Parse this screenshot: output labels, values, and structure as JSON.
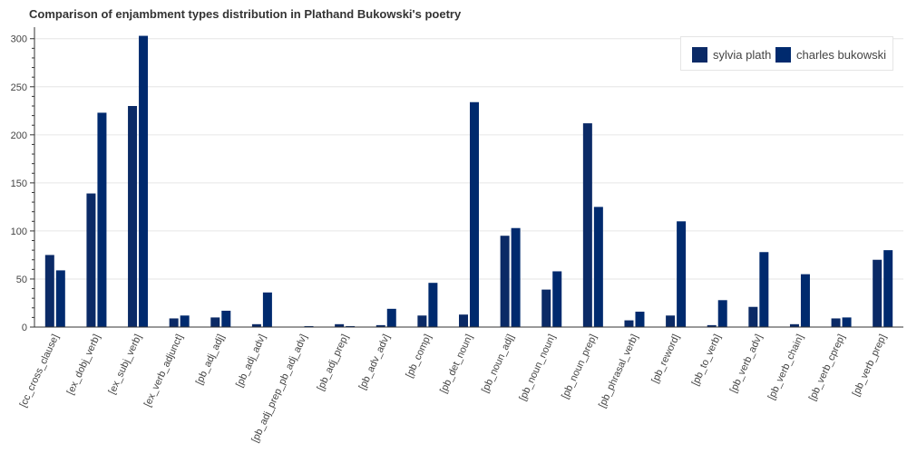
{
  "title": "Comparison of enjambment types distribution in Plathand Bukowski's poetry",
  "colors": {
    "series_0": "#0b2a66",
    "series_1": "#002a6e"
  },
  "chart_data": {
    "type": "bar",
    "title": "Comparison of enjambment types distribution in Plathand Bukowski's poetry",
    "xlabel": "",
    "ylabel": "",
    "ylim": [
      0,
      312
    ],
    "yticks": [
      0,
      50,
      100,
      150,
      200,
      250,
      300
    ],
    "grid": "horizontal",
    "legend_position": "top-right",
    "categories": [
      "[cc_cross_clause]",
      "[ex_dobj_verb]",
      "[ex_subj_verb]",
      "[ex_verb_adjunct]",
      "[pb_adj_adj]",
      "[pb_adj_adv]",
      "[pb_adj_prep_pb_adj_adv]",
      "[pb_adj_prep]",
      "[pb_adv_adv]",
      "[pb_comp]",
      "[pb_det_noun]",
      "[pb_noun_adj]",
      "[pb_noun_noun]",
      "[pb_noun_prep]",
      "[pb_phrasal_verb]",
      "[pb_reword]",
      "[pb_to_verb]",
      "[pb_verb_adv]",
      "[pb_verb_chain]",
      "[pb_verb_cprep]",
      "[pb_verb_prep]"
    ],
    "series": [
      {
        "name": "sylvia plath",
        "values": [
          75,
          139,
          230,
          9,
          10,
          3,
          0,
          3,
          2,
          12,
          13,
          95,
          39,
          212,
          7,
          12,
          2,
          21,
          3,
          9,
          70
        ]
      },
      {
        "name": "charles bukowski",
        "values": [
          59,
          223,
          303,
          12,
          17,
          36,
          1,
          1,
          19,
          46,
          234,
          103,
          58,
          125,
          16,
          110,
          28,
          78,
          55,
          10,
          80
        ]
      }
    ]
  }
}
